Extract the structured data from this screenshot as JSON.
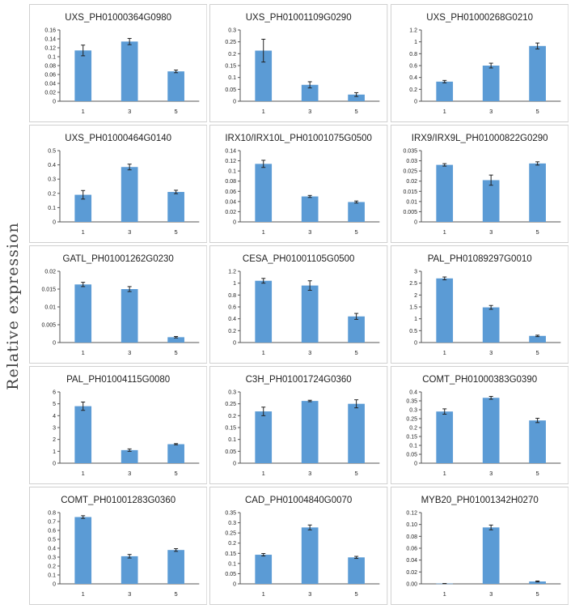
{
  "y_axis_label": "Relative expression",
  "colors": {
    "bar": "#5b9bd5",
    "panel_border": "#d0d0d0",
    "axis": "#555555",
    "text": "#222222"
  },
  "chart_data": [
    {
      "type": "bar",
      "title": "UXS_PH01000364G0980",
      "categories": [
        "1",
        "3",
        "5"
      ],
      "values": [
        0.114,
        0.134,
        0.067
      ],
      "errors": [
        0.012,
        0.007,
        0.003
      ],
      "ylim": [
        0,
        0.16
      ],
      "yticks": [
        "0",
        "0.02",
        "0.04",
        "0.06",
        "0.08",
        "0.1",
        "0.12",
        "0.14",
        "0.16"
      ]
    },
    {
      "type": "bar",
      "title": "UXS_PH01001109G0290",
      "categories": [
        "1",
        "3",
        "5"
      ],
      "values": [
        0.213,
        0.069,
        0.028
      ],
      "errors": [
        0.048,
        0.013,
        0.008
      ],
      "ylim": [
        0,
        0.3
      ],
      "yticks": [
        "0",
        "0.05",
        "0.1",
        "0.15",
        "0.2",
        "0.25",
        "0.3"
      ]
    },
    {
      "type": "bar",
      "title": "UXS_PH01000268G0210",
      "categories": [
        "1",
        "3",
        "5"
      ],
      "values": [
        0.33,
        0.6,
        0.93
      ],
      "errors": [
        0.02,
        0.04,
        0.05
      ],
      "ylim": [
        0,
        1.2
      ],
      "yticks": [
        "0",
        "0.2",
        "0.4",
        "0.6",
        "0.8",
        "1",
        "1.2"
      ]
    },
    {
      "type": "bar",
      "title": "UXS_PH01000464G0140",
      "categories": [
        "1",
        "3",
        "5"
      ],
      "values": [
        0.19,
        0.385,
        0.21
      ],
      "errors": [
        0.03,
        0.02,
        0.012
      ],
      "ylim": [
        0,
        0.5
      ],
      "yticks": [
        "0",
        "0.1",
        "0.2",
        "0.3",
        "0.4",
        "0.5"
      ]
    },
    {
      "type": "bar",
      "title": "IRX10/IRX10L_PH01001075G0500",
      "categories": [
        "1",
        "3",
        "5"
      ],
      "values": [
        0.114,
        0.05,
        0.039
      ],
      "errors": [
        0.007,
        0.002,
        0.002
      ],
      "ylim": [
        0,
        0.14
      ],
      "yticks": [
        "0",
        "0.02",
        "0.04",
        "0.06",
        "0.08",
        "0.1",
        "0.12",
        "0.14"
      ]
    },
    {
      "type": "bar",
      "title": "IRX9/IRX9L_PH01000822G0290",
      "categories": [
        "1",
        "3",
        "5"
      ],
      "values": [
        0.028,
        0.0205,
        0.0287
      ],
      "errors": [
        0.0006,
        0.0025,
        0.0008
      ],
      "ylim": [
        0,
        0.035
      ],
      "yticks": [
        "0",
        "0.005",
        "0.01",
        "0.015",
        "0.02",
        "0.025",
        "0.03",
        "0.035"
      ]
    },
    {
      "type": "bar",
      "title": "GATL_PH01001262G0230",
      "categories": [
        "1",
        "3",
        "5"
      ],
      "values": [
        0.0163,
        0.015,
        0.0015
      ],
      "errors": [
        0.0006,
        0.0007,
        0.0002
      ],
      "ylim": [
        0,
        0.02
      ],
      "yticks": [
        "0",
        "0.005",
        "0.01",
        "0.015",
        "0.02"
      ]
    },
    {
      "type": "bar",
      "title": "CESA_PH01001105G0500",
      "categories": [
        "1",
        "3",
        "5"
      ],
      "values": [
        1.04,
        0.96,
        0.44
      ],
      "errors": [
        0.04,
        0.08,
        0.05
      ],
      "ylim": [
        0,
        1.2
      ],
      "yticks": [
        "0",
        "0.2",
        "0.4",
        "0.6",
        "0.8",
        "1",
        "1.2"
      ]
    },
    {
      "type": "bar",
      "title": "PAL_PH01089297G0010",
      "categories": [
        "1",
        "3",
        "5"
      ],
      "values": [
        2.7,
        1.48,
        0.28
      ],
      "errors": [
        0.06,
        0.08,
        0.03
      ],
      "ylim": [
        0,
        3
      ],
      "yticks": [
        "0",
        "0.5",
        "1",
        "1.5",
        "2",
        "2.5",
        "3"
      ]
    },
    {
      "type": "bar",
      "title": "PAL_PH01004115G0080",
      "categories": [
        "1",
        "3",
        "5"
      ],
      "values": [
        4.8,
        1.1,
        1.6
      ],
      "errors": [
        0.35,
        0.1,
        0.05
      ],
      "ylim": [
        0,
        6
      ],
      "yticks": [
        "0",
        "1",
        "2",
        "3",
        "4",
        "5",
        "6"
      ]
    },
    {
      "type": "bar",
      "title": "C3H_PH01001724G0360",
      "categories": [
        "1",
        "3",
        "5"
      ],
      "values": [
        0.218,
        0.262,
        0.25
      ],
      "errors": [
        0.018,
        0.003,
        0.017
      ],
      "ylim": [
        0,
        0.3
      ],
      "yticks": [
        "0",
        "0.05",
        "0.1",
        "0.15",
        "0.2",
        "0.25",
        "0.3"
      ]
    },
    {
      "type": "bar",
      "title": "COMT_PH01000383G0390",
      "categories": [
        "1",
        "3",
        "5"
      ],
      "values": [
        0.29,
        0.367,
        0.24
      ],
      "errors": [
        0.015,
        0.008,
        0.012
      ],
      "ylim": [
        0,
        0.4
      ],
      "yticks": [
        "0",
        "0.05",
        "0.1",
        "0.15",
        "0.2",
        "0.25",
        "0.3",
        "0.35",
        "0.4"
      ]
    },
    {
      "type": "bar",
      "title": "COMT_PH01001283G0360",
      "categories": [
        "1",
        "3",
        "5"
      ],
      "values": [
        0.75,
        0.31,
        0.38
      ],
      "errors": [
        0.015,
        0.02,
        0.015
      ],
      "ylim": [
        0,
        0.8
      ],
      "yticks": [
        "0",
        "0.1",
        "0.2",
        "0.3",
        "0.4",
        "0.5",
        "0.6",
        "0.7",
        "0.8"
      ]
    },
    {
      "type": "bar",
      "title": "CAD_PH01004840G0070",
      "categories": [
        "1",
        "3",
        "5"
      ],
      "values": [
        0.143,
        0.277,
        0.13
      ],
      "errors": [
        0.006,
        0.012,
        0.005
      ],
      "ylim": [
        0,
        0.35
      ],
      "yticks": [
        "0",
        "0.05",
        "0.1",
        "0.15",
        "0.2",
        "0.25",
        "0.3",
        "0.35"
      ]
    },
    {
      "type": "bar",
      "title": "MYB20_PH01001342H0270",
      "categories": [
        "1",
        "3",
        "5"
      ],
      "values": [
        0.0005,
        0.095,
        0.004
      ],
      "errors": [
        0.0002,
        0.004,
        0.0008
      ],
      "ylim": [
        0,
        0.12
      ],
      "yticks": [
        "0.00",
        "0.02",
        "0.04",
        "0.06",
        "0.08",
        "0.10",
        "0.12"
      ]
    }
  ]
}
